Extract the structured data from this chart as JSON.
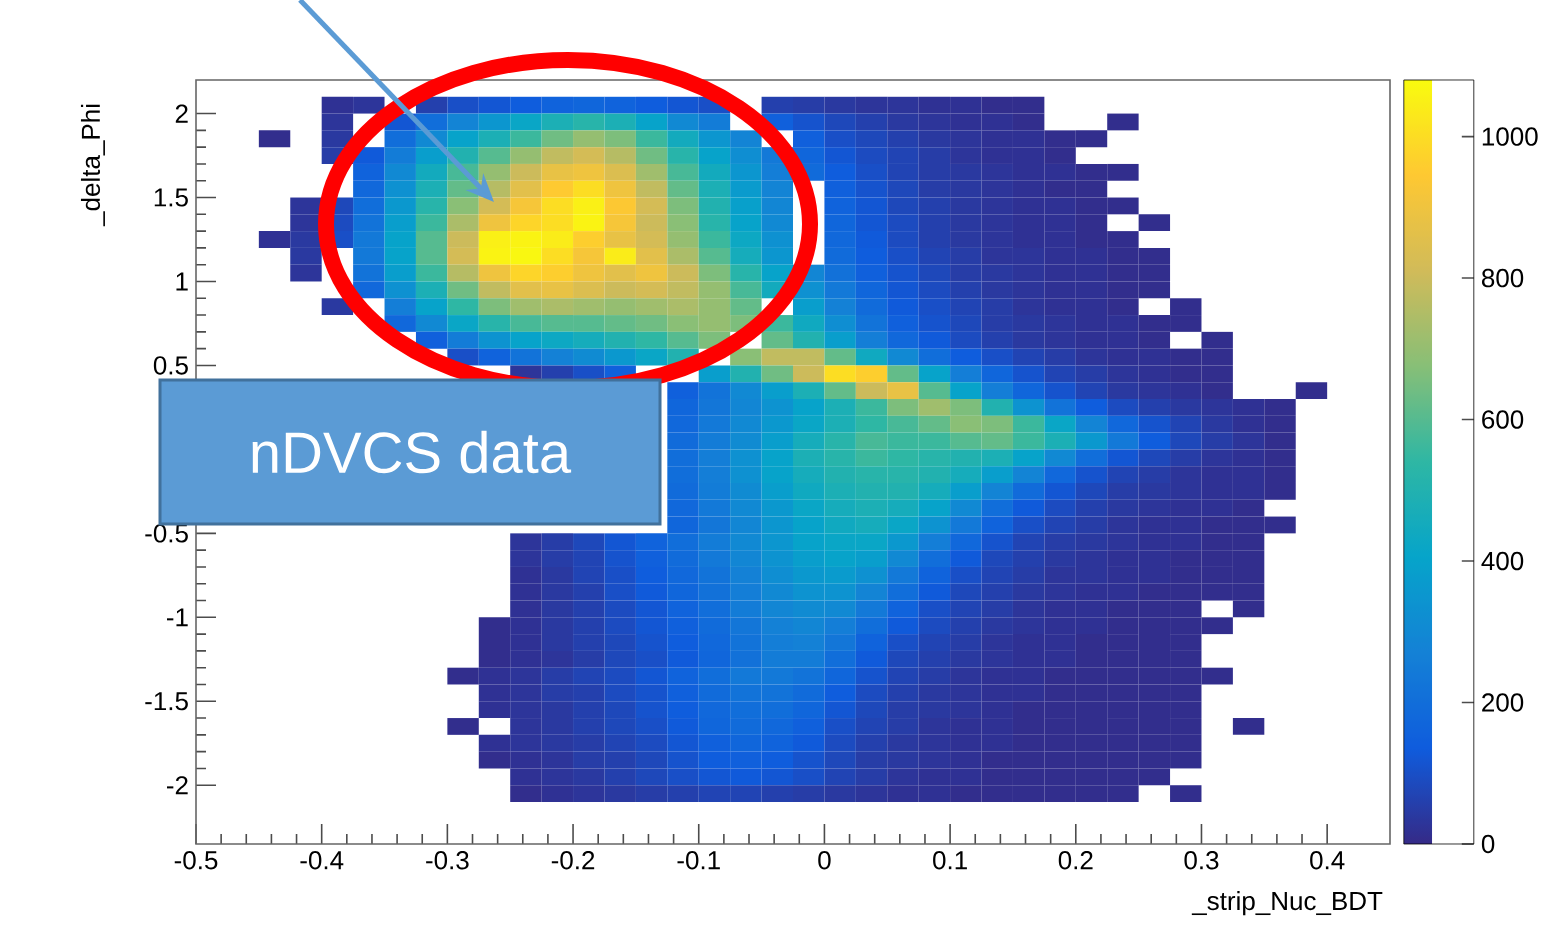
{
  "chart_data": {
    "type": "heatmap",
    "xlabel": "_strip_Nuc_BDT",
    "ylabel": "_delta_Phi",
    "annotations": [
      "nDVCS data"
    ],
    "xlim": [
      -0.5,
      0.45
    ],
    "ylim": [
      -2.35,
      2.2
    ],
    "xticks": [
      -0.5,
      -0.4,
      -0.3,
      -0.2,
      -0.1,
      0,
      0.1,
      0.2,
      0.3,
      0.4
    ],
    "yticks": [
      -2,
      -1.5,
      -1,
      -0.5,
      {
        "value": 0,
        "label": null
      },
      0.5,
      1,
      1.5,
      2
    ],
    "clim": [
      0,
      1080
    ],
    "cticks": [
      0,
      200,
      400,
      600,
      800,
      1000
    ],
    "colors": [
      "#352a87",
      "#0f5cdd",
      "#1481d6",
      "#06a4ca",
      "#2eb7a4",
      "#87bf77",
      "#d1bb59",
      "#fec832",
      "#f9fb0e"
    ],
    "x": [
      -0.4375,
      -0.4125,
      -0.3875,
      -0.3625,
      -0.3375,
      -0.3125,
      -0.2875,
      -0.2625,
      -0.2375,
      -0.2125,
      -0.1875,
      -0.1625,
      -0.1375,
      -0.1125,
      -0.0875,
      -0.0625,
      -0.0375,
      -0.0125,
      0.0125,
      0.0375,
      0.0625,
      0.0875,
      0.1125,
      0.1375,
      0.1625,
      0.1875,
      0.2125,
      0.2375,
      0.2625,
      0.2875,
      0.3125,
      0.3375,
      0.3625,
      0.3875
    ],
    "y": [
      2.05,
      1.95,
      1.85,
      1.75,
      1.65,
      1.55,
      1.45,
      1.35,
      1.25,
      1.15,
      1.05,
      0.95,
      0.85,
      0.75,
      0.65,
      0.55,
      0.45,
      0.35,
      0.25,
      0.15,
      0.05,
      -0.05,
      -0.15,
      -0.25,
      -0.35,
      -0.45,
      -0.55,
      -0.65,
      -0.75,
      -0.85,
      -0.95,
      -1.05,
      -1.15,
      -1.25,
      -1.35,
      -1.45,
      -1.55,
      -1.65,
      -1.75,
      -1.85,
      -1.95,
      -2.05
    ],
    "cells": [
      [
        null,
        null,
        20,
        30,
        null,
        60,
        100,
        120,
        140,
        160,
        170,
        160,
        140,
        120,
        100,
        null,
        60,
        50,
        40,
        30,
        30,
        20,
        20,
        10,
        10,
        null,
        null,
        null,
        null,
        null,
        null,
        null,
        null,
        null
      ],
      [
        null,
        null,
        30,
        null,
        120,
        200,
        280,
        350,
        420,
        480,
        520,
        480,
        400,
        300,
        250,
        null,
        150,
        110,
        80,
        60,
        40,
        30,
        20,
        20,
        10,
        null,
        null,
        10,
        null,
        null,
        null,
        null,
        null,
        null
      ],
      [
        10,
        null,
        40,
        null,
        200,
        300,
        400,
        480,
        560,
        640,
        700,
        660,
        560,
        450,
        350,
        280,
        null,
        150,
        100,
        80,
        60,
        40,
        30,
        20,
        20,
        10,
        10,
        null,
        null,
        null,
        null,
        null,
        null,
        null
      ],
      [
        null,
        null,
        50,
        130,
        250,
        380,
        500,
        600,
        700,
        780,
        820,
        760,
        640,
        520,
        400,
        320,
        240,
        170,
        120,
        90,
        70,
        50,
        30,
        20,
        20,
        10,
        null,
        null,
        null,
        null,
        null,
        null,
        null,
        null
      ],
      [
        null,
        null,
        null,
        160,
        300,
        450,
        580,
        700,
        800,
        880,
        900,
        840,
        720,
        580,
        450,
        350,
        260,
        190,
        140,
        100,
        70,
        50,
        40,
        30,
        20,
        20,
        10,
        10,
        null,
        null,
        null,
        null,
        null,
        null
      ],
      [
        null,
        null,
        null,
        180,
        330,
        480,
        620,
        760,
        860,
        950,
        1000,
        900,
        780,
        620,
        480,
        370,
        280,
        null,
        150,
        110,
        80,
        50,
        40,
        30,
        20,
        10,
        10,
        null,
        null,
        null,
        null,
        null,
        null,
        null
      ],
      [
        null,
        30,
        80,
        200,
        360,
        520,
        680,
        820,
        920,
        1000,
        1050,
        940,
        820,
        660,
        500,
        390,
        290,
        null,
        160,
        120,
        80,
        60,
        40,
        30,
        20,
        20,
        10,
        10,
        null,
        null,
        null,
        null,
        null,
        null
      ],
      [
        null,
        30,
        90,
        220,
        380,
        560,
        740,
        900,
        980,
        1000,
        1060,
        920,
        800,
        680,
        520,
        400,
        300,
        null,
        170,
        120,
        90,
        60,
        40,
        30,
        20,
        20,
        10,
        null,
        10,
        null,
        null,
        null,
        null,
        null
      ],
      [
        20,
        40,
        100,
        240,
        400,
        600,
        800,
        1050,
        1060,
        1040,
        960,
        880,
        820,
        700,
        560,
        430,
        330,
        null,
        180,
        130,
        90,
        60,
        40,
        30,
        20,
        20,
        10,
        10,
        null,
        null,
        null,
        null,
        null,
        null
      ],
      [
        null,
        40,
        null,
        240,
        400,
        600,
        820,
        1060,
        1070,
        1000,
        920,
        1040,
        860,
        740,
        600,
        460,
        350,
        null,
        190,
        140,
        100,
        70,
        50,
        30,
        30,
        20,
        20,
        10,
        10,
        null,
        null,
        null,
        null,
        null
      ],
      [
        null,
        30,
        null,
        220,
        380,
        560,
        760,
        900,
        980,
        960,
        900,
        860,
        900,
        800,
        660,
        520,
        400,
        290,
        210,
        150,
        110,
        80,
        50,
        40,
        30,
        20,
        20,
        10,
        10,
        null,
        null,
        null,
        null,
        null
      ],
      [
        null,
        null,
        null,
        180,
        330,
        480,
        640,
        780,
        860,
        880,
        840,
        800,
        820,
        780,
        700,
        580,
        450,
        330,
        240,
        170,
        120,
        90,
        60,
        40,
        30,
        20,
        20,
        10,
        10,
        null,
        null,
        null,
        null,
        null
      ],
      [
        null,
        null,
        40,
        null,
        260,
        400,
        540,
        660,
        720,
        740,
        720,
        700,
        720,
        740,
        700,
        620,
        null,
        380,
        270,
        190,
        130,
        100,
        70,
        50,
        30,
        20,
        20,
        10,
        null,
        10,
        null,
        null,
        null,
        null
      ],
      [
        null,
        null,
        null,
        null,
        180,
        300,
        420,
        520,
        580,
        600,
        600,
        620,
        640,
        680,
        700,
        660,
        560,
        440,
        320,
        220,
        150,
        110,
        80,
        50,
        40,
        30,
        20,
        20,
        10,
        10,
        null,
        null,
        null,
        null
      ],
      [
        null,
        null,
        null,
        null,
        null,
        150,
        250,
        340,
        400,
        430,
        460,
        500,
        540,
        600,
        660,
        null,
        620,
        500,
        380,
        260,
        180,
        130,
        90,
        60,
        40,
        30,
        20,
        20,
        10,
        null,
        10,
        null,
        null,
        null
      ],
      [
        null,
        null,
        null,
        null,
        null,
        null,
        100,
        160,
        220,
        270,
        310,
        360,
        420,
        500,
        null,
        680,
        780,
        780,
        620,
        440,
        300,
        200,
        140,
        100,
        70,
        50,
        30,
        20,
        20,
        10,
        10,
        null,
        null,
        null
      ],
      [
        null,
        null,
        null,
        null,
        null,
        null,
        null,
        null,
        30,
        60,
        100,
        150,
        null,
        null,
        380,
        500,
        640,
        800,
        1000,
        960,
        620,
        400,
        260,
        170,
        110,
        70,
        50,
        30,
        20,
        10,
        10,
        null,
        null,
        null
      ],
      [
        null,
        null,
        null,
        null,
        null,
        null,
        null,
        null,
        null,
        null,
        null,
        null,
        null,
        150,
        220,
        300,
        380,
        480,
        620,
        800,
        880,
        600,
        400,
        260,
        170,
        110,
        70,
        40,
        30,
        20,
        10,
        null,
        null,
        10
      ],
      [
        null,
        null,
        null,
        null,
        null,
        null,
        null,
        null,
        null,
        null,
        null,
        null,
        null,
        170,
        230,
        290,
        340,
        400,
        480,
        560,
        660,
        720,
        660,
        500,
        340,
        220,
        140,
        90,
        60,
        40,
        30,
        20,
        10,
        null
      ],
      [
        null,
        null,
        null,
        null,
        null,
        null,
        null,
        null,
        null,
        null,
        null,
        null,
        null,
        180,
        240,
        300,
        360,
        420,
        480,
        540,
        580,
        620,
        680,
        660,
        560,
        420,
        280,
        180,
        110,
        70,
        40,
        20,
        10,
        null
      ],
      [
        null,
        null,
        null,
        null,
        null,
        null,
        null,
        null,
        null,
        null,
        null,
        null,
        null,
        190,
        250,
        310,
        380,
        460,
        520,
        580,
        560,
        560,
        600,
        620,
        560,
        480,
        360,
        240,
        140,
        80,
        50,
        30,
        10,
        null
      ],
      [
        null,
        null,
        null,
        null,
        null,
        null,
        null,
        null,
        null,
        null,
        null,
        null,
        null,
        200,
        260,
        330,
        400,
        480,
        520,
        560,
        540,
        520,
        500,
        480,
        400,
        300,
        200,
        120,
        80,
        50,
        30,
        20,
        10,
        null
      ],
      [
        null,
        null,
        null,
        null,
        null,
        null,
        null,
        null,
        null,
        null,
        null,
        null,
        null,
        200,
        260,
        330,
        400,
        460,
        500,
        520,
        520,
        500,
        460,
        380,
        280,
        180,
        110,
        70,
        50,
        30,
        20,
        20,
        10,
        null
      ],
      [
        null,
        null,
        null,
        null,
        null,
        null,
        null,
        null,
        null,
        null,
        null,
        null,
        null,
        190,
        250,
        310,
        380,
        440,
        480,
        500,
        500,
        460,
        380,
        280,
        190,
        120,
        80,
        50,
        40,
        30,
        20,
        20,
        10,
        null
      ],
      [
        null,
        null,
        null,
        null,
        null,
        null,
        null,
        null,
        null,
        null,
        null,
        null,
        null,
        180,
        240,
        300,
        360,
        420,
        460,
        480,
        460,
        400,
        300,
        200,
        130,
        90,
        60,
        40,
        30,
        20,
        20,
        10,
        null,
        null
      ],
      [
        null,
        null,
        null,
        null,
        null,
        null,
        null,
        null,
        null,
        null,
        null,
        null,
        null,
        170,
        230,
        290,
        350,
        400,
        440,
        460,
        420,
        340,
        240,
        160,
        100,
        70,
        50,
        30,
        20,
        20,
        10,
        10,
        10,
        null
      ],
      [
        null,
        null,
        null,
        null,
        null,
        null,
        null,
        null,
        30,
        50,
        80,
        120,
        160,
        200,
        250,
        300,
        350,
        400,
        420,
        420,
        360,
        260,
        180,
        110,
        70,
        50,
        40,
        30,
        20,
        20,
        10,
        10,
        null,
        null
      ],
      [
        null,
        null,
        null,
        null,
        null,
        null,
        null,
        null,
        30,
        50,
        70,
        110,
        150,
        190,
        240,
        290,
        340,
        380,
        400,
        380,
        300,
        200,
        130,
        80,
        60,
        40,
        30,
        20,
        20,
        10,
        10,
        10,
        null,
        null
      ],
      [
        null,
        null,
        null,
        null,
        null,
        null,
        null,
        null,
        20,
        40,
        70,
        100,
        140,
        180,
        220,
        270,
        320,
        360,
        370,
        330,
        240,
        160,
        100,
        70,
        50,
        30,
        30,
        20,
        20,
        10,
        10,
        10,
        null,
        null
      ],
      [
        null,
        null,
        null,
        null,
        null,
        null,
        null,
        null,
        20,
        40,
        60,
        100,
        130,
        170,
        210,
        260,
        300,
        340,
        340,
        280,
        200,
        130,
        80,
        60,
        40,
        30,
        20,
        20,
        10,
        10,
        10,
        10,
        null,
        null
      ],
      [
        null,
        null,
        null,
        null,
        null,
        null,
        null,
        null,
        20,
        40,
        60,
        90,
        120,
        160,
        200,
        250,
        290,
        310,
        300,
        240,
        160,
        100,
        70,
        50,
        30,
        20,
        20,
        10,
        10,
        10,
        null,
        10,
        null,
        null
      ],
      [
        null,
        null,
        null,
        null,
        null,
        null,
        null,
        10,
        20,
        40,
        60,
        90,
        120,
        150,
        190,
        230,
        270,
        290,
        260,
        200,
        130,
        90,
        60,
        40,
        30,
        20,
        20,
        10,
        10,
        10,
        10,
        null,
        null,
        null
      ],
      [
        null,
        null,
        null,
        null,
        null,
        null,
        null,
        10,
        20,
        40,
        60,
        80,
        110,
        140,
        180,
        220,
        260,
        270,
        230,
        160,
        100,
        70,
        50,
        30,
        20,
        20,
        10,
        10,
        10,
        10,
        null,
        null,
        null,
        null
      ],
      [
        null,
        null,
        null,
        null,
        null,
        null,
        null,
        10,
        20,
        30,
        50,
        80,
        100,
        130,
        170,
        210,
        250,
        250,
        200,
        130,
        80,
        60,
        40,
        30,
        20,
        20,
        10,
        10,
        10,
        10,
        null,
        null,
        null,
        null
      ],
      [
        null,
        null,
        null,
        null,
        null,
        null,
        10,
        20,
        30,
        50,
        70,
        90,
        120,
        160,
        200,
        240,
        240,
        220,
        170,
        110,
        70,
        50,
        30,
        20,
        20,
        10,
        10,
        10,
        10,
        10,
        10,
        null,
        null,
        null
      ],
      [
        null,
        null,
        null,
        null,
        null,
        null,
        null,
        20,
        30,
        50,
        60,
        90,
        110,
        150,
        190,
        220,
        220,
        190,
        140,
        90,
        60,
        40,
        30,
        20,
        20,
        10,
        10,
        10,
        10,
        10,
        null,
        null,
        null,
        null
      ],
      [
        null,
        null,
        null,
        null,
        null,
        null,
        null,
        20,
        30,
        40,
        60,
        80,
        110,
        140,
        180,
        200,
        200,
        170,
        120,
        80,
        50,
        40,
        30,
        20,
        10,
        10,
        10,
        10,
        10,
        10,
        null,
        null,
        null,
        null
      ],
      [
        null,
        null,
        null,
        null,
        null,
        null,
        10,
        null,
        30,
        40,
        60,
        80,
        100,
        130,
        170,
        190,
        180,
        150,
        100,
        70,
        50,
        30,
        20,
        20,
        10,
        10,
        10,
        10,
        10,
        10,
        null,
        10,
        null,
        null
      ],
      [
        null,
        null,
        null,
        null,
        null,
        null,
        null,
        20,
        30,
        40,
        50,
        70,
        90,
        120,
        150,
        170,
        160,
        130,
        90,
        60,
        40,
        30,
        20,
        20,
        10,
        10,
        10,
        10,
        10,
        10,
        null,
        null,
        null,
        null
      ],
      [
        null,
        null,
        null,
        null,
        null,
        null,
        null,
        10,
        20,
        30,
        50,
        60,
        80,
        110,
        140,
        150,
        140,
        110,
        80,
        50,
        40,
        30,
        20,
        10,
        10,
        10,
        10,
        10,
        10,
        10,
        null,
        null,
        null,
        null
      ],
      [
        null,
        null,
        null,
        null,
        null,
        null,
        null,
        null,
        20,
        30,
        40,
        60,
        80,
        100,
        120,
        130,
        120,
        100,
        70,
        50,
        30,
        20,
        20,
        10,
        10,
        10,
        10,
        10,
        10,
        null,
        null,
        null,
        null,
        null
      ],
      [
        null,
        null,
        null,
        null,
        null,
        null,
        null,
        null,
        10,
        20,
        30,
        40,
        50,
        60,
        70,
        70,
        60,
        50,
        40,
        30,
        20,
        20,
        10,
        10,
        10,
        10,
        10,
        10,
        null,
        10,
        null,
        null,
        null,
        null
      ]
    ]
  }
}
